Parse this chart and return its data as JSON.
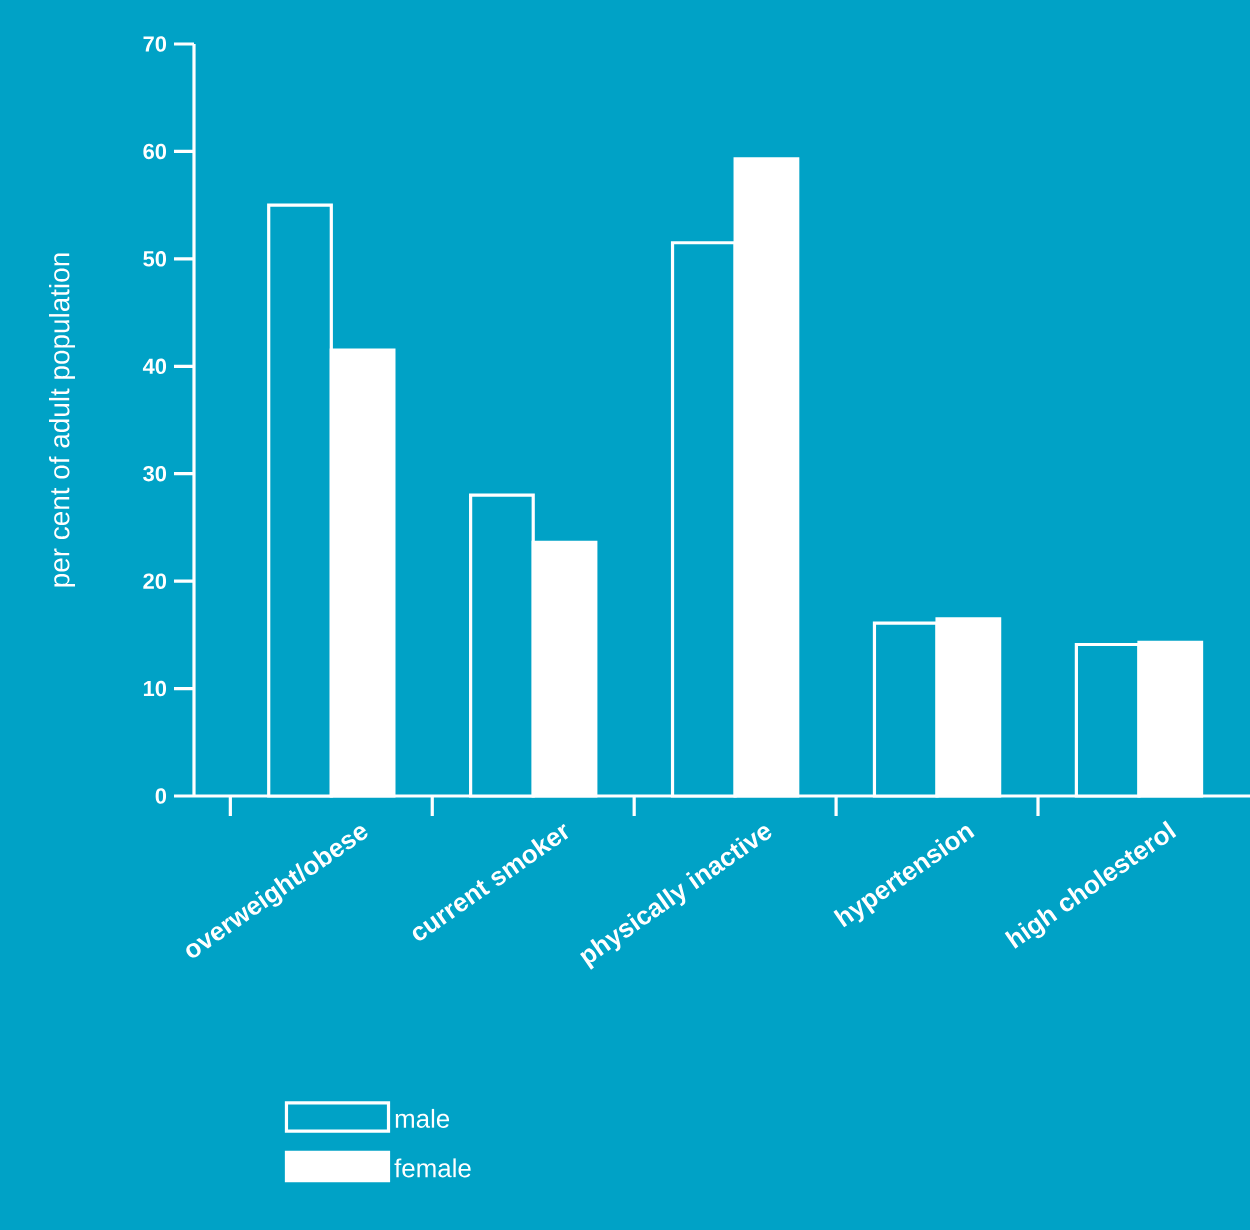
{
  "chart_data": {
    "type": "bar",
    "ylabel": "per cent of adult population",
    "categories": [
      "overweight/obese",
      "current smoker",
      "physically inactive",
      "hypertension",
      "high cholesterol"
    ],
    "series": [
      {
        "name": "male",
        "color": "#00a2c6",
        "values": [
          55,
          28,
          51.5,
          16.1,
          14.1
        ]
      },
      {
        "name": "female",
        "color": "#ffffff",
        "values": [
          41.5,
          23.6,
          59.3,
          16.5,
          14.3
        ]
      }
    ],
    "ylim": [
      0,
      70
    ],
    "yticks": [
      0,
      10,
      20,
      30,
      40,
      50,
      60,
      70
    ],
    "grid": false,
    "legend": "bottom"
  }
}
